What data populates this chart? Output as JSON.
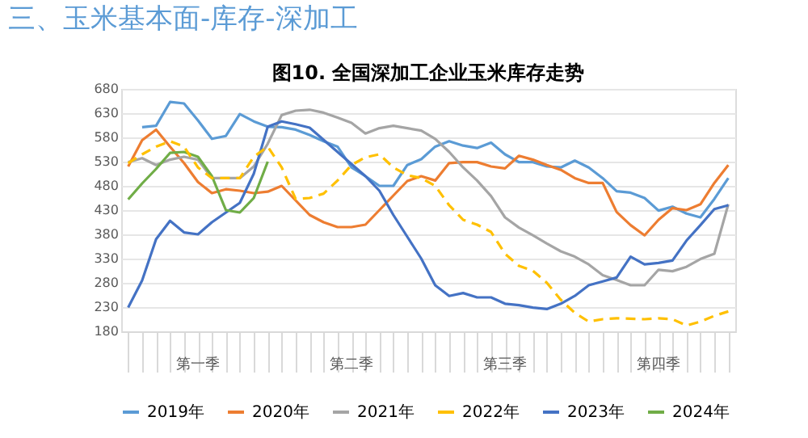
{
  "chart_data": {
    "type": "line",
    "title": "三、玉米基本面-库存-深加工",
    "subtitle": "图10. 全国深加工企业玉米库存走势",
    "categories": [
      null,
      null,
      null,
      null,
      null,
      null,
      null,
      null,
      null,
      null,
      null,
      null,
      null,
      null,
      null,
      null,
      null,
      null,
      null,
      null,
      null,
      null,
      null,
      null,
      null,
      null,
      null,
      null,
      null,
      null,
      null,
      null,
      null,
      null,
      null,
      null,
      null,
      null,
      null,
      null,
      null,
      null,
      null,
      null
    ],
    "ylim": [
      180,
      680
    ],
    "yticks": [
      180,
      230,
      280,
      330,
      380,
      430,
      480,
      530,
      580,
      630,
      680
    ],
    "grid": "y",
    "legend": "bottom",
    "tick_labels": "y",
    "annotations": [
      "第一季",
      "第二季",
      "第三季",
      "第四季"
    ],
    "series": [
      {
        "name": "2019年",
        "color": "#5b9bd5",
        "values": [
          null,
          601,
          604,
          653,
          650,
          615,
          577,
          583,
          628,
          613,
          602,
          601,
          596,
          585,
          572,
          561,
          518,
          500,
          480,
          480,
          523,
          535,
          561,
          572,
          563,
          558,
          569,
          545,
          529,
          529,
          520,
          518,
          532,
          518,
          496,
          469,
          466,
          455,
          429,
          437,
          423,
          415,
          453,
          496
        ]
      },
      {
        "name": "2020年",
        "color": "#ed7d31",
        "values": [
          520,
          574,
          596,
          561,
          527,
          488,
          465,
          473,
          470,
          465,
          468,
          480,
          450,
          420,
          405,
          395,
          395,
          400,
          430,
          460,
          490,
          500,
          491,
          527,
          529,
          529,
          520,
          516,
          542,
          534,
          523,
          513,
          496,
          486,
          486,
          426,
          399,
          378,
          410,
          434,
          430,
          442,
          486,
          523
        ]
      },
      {
        "name": "2021年",
        "color": "#a5a5a5",
        "values": [
          529,
          537,
          523,
          534,
          540,
          534,
          496,
          496,
          496,
          520,
          567,
          626,
          635,
          637,
          631,
          621,
          610,
          588,
          599,
          604,
          599,
          594,
          577,
          550,
          518,
          491,
          459,
          415,
          394,
          378,
          361,
          345,
          334,
          318,
          296,
          286,
          275,
          275,
          307,
          304,
          313,
          329,
          340,
          442
        ]
      },
      {
        "name": "2022年",
        "color": "#ffc000",
        "line_style": "dashed",
        "values": [
          527,
          545,
          561,
          572,
          561,
          518,
          496,
          496,
          496,
          540,
          561,
          518,
          453,
          455,
          464,
          491,
          523,
          539,
          545,
          518,
          502,
          496,
          480,
          440,
          410,
          400,
          385,
          340,
          315,
          305,
          280,
          245,
          218,
          200,
          205,
          207,
          206,
          205,
          207,
          205,
          192,
          200,
          212,
          221
        ]
      },
      {
        "name": "2023年",
        "color": "#4472c4",
        "values": [
          229,
          285,
          370,
          408,
          384,
          380,
          405,
          425,
          445,
          505,
          602,
          613,
          607,
          600,
          575,
          550,
          525,
          500,
          470,
          420,
          375,
          330,
          275,
          253,
          259,
          250,
          250,
          237,
          234,
          229,
          226,
          237,
          253,
          275,
          283,
          291,
          334,
          318,
          321,
          326,
          367,
          399,
          432,
          440
        ]
      },
      {
        "name": "2024年",
        "color": "#70ad47",
        "values": [
          452,
          485,
          515,
          548,
          550,
          540,
          500,
          430,
          425,
          455,
          530,
          null,
          null,
          null,
          null,
          null,
          null,
          null,
          null,
          null,
          null,
          null,
          null,
          null,
          null,
          null,
          null,
          null,
          null,
          null,
          null,
          null,
          null,
          null,
          null,
          null,
          null,
          null,
          null,
          null,
          null,
          null,
          null,
          null
        ]
      }
    ]
  }
}
